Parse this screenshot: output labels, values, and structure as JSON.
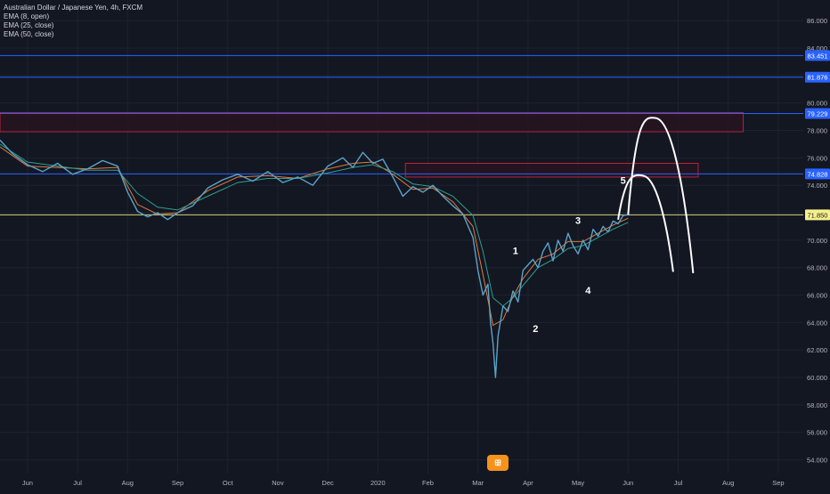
{
  "header": {
    "symbol_line": "Australian Dollar / Japanese Yen, 4h, FXCM",
    "indicators": [
      "EMA (8, open)",
      "EMA (25, close)",
      "EMA (50, close)"
    ]
  },
  "colors": {
    "background": "#131722",
    "grid": "#1e2230",
    "axis_text": "#b2b5be",
    "hline_blue": "#2962ff",
    "hline_current": "#d7d27a",
    "zone_border": "#b2243b",
    "zone_fill": "#2a1420",
    "price_series": "#5ba3c9",
    "ema_fast": "#e37b3a",
    "ema_slow": "#2f9e8f",
    "projection": "#ffffff",
    "wave_label": "#ffffff"
  },
  "chart_data": {
    "type": "line",
    "title": "Australian Dollar / Japanese Yen, 4h, FXCM",
    "xlabel": "",
    "ylabel": "",
    "x_ticks": [
      "Jun",
      "Jul",
      "Aug",
      "Sep",
      "Oct",
      "Nov",
      "Dec",
      "2020",
      "Feb",
      "Mar",
      "Apr",
      "May",
      "Jun",
      "Jul",
      "Aug",
      "Sep"
    ],
    "x_tick_months": [
      0,
      1,
      2,
      3,
      4,
      5,
      6,
      7,
      8,
      9,
      10,
      11,
      12,
      13,
      14,
      15
    ],
    "y_ticks": [
      "86.000",
      "84.000",
      "82.000",
      "80.000",
      "78.000",
      "76.000",
      "74.000",
      "72.000",
      "70.000",
      "68.000",
      "66.000",
      "64.000",
      "62.000",
      "60.000",
      "58.000",
      "56.000",
      "54.000"
    ],
    "ylim": [
      53,
      87.5
    ],
    "xlim_months": [
      -0.55,
      15.5
    ],
    "grid": true,
    "price_series": {
      "x_months": [
        -0.55,
        -0.3,
        0.0,
        0.3,
        0.6,
        0.9,
        1.2,
        1.5,
        1.8,
        2.0,
        2.2,
        2.4,
        2.6,
        2.8,
        3.0,
        3.3,
        3.6,
        3.9,
        4.2,
        4.5,
        4.8,
        5.1,
        5.4,
        5.7,
        6.0,
        6.3,
        6.5,
        6.7,
        6.9,
        7.1,
        7.3,
        7.5,
        7.7,
        7.9,
        8.1,
        8.3,
        8.5,
        8.7,
        8.9,
        9.0,
        9.1,
        9.2,
        9.25,
        9.3,
        9.35,
        9.4,
        9.5,
        9.6,
        9.7,
        9.8,
        9.9,
        10.0,
        10.1,
        10.2,
        10.3,
        10.4,
        10.5,
        10.6,
        10.7,
        10.8,
        10.9,
        11.0,
        11.1,
        11.2,
        11.3,
        11.4,
        11.5,
        11.6,
        11.7,
        11.8,
        11.9,
        12.0
      ],
      "values": [
        77.3,
        76.3,
        75.5,
        75.0,
        75.6,
        74.8,
        75.2,
        75.8,
        75.4,
        73.5,
        72.1,
        71.7,
        72.0,
        71.5,
        72.0,
        72.5,
        73.8,
        74.4,
        74.8,
        74.3,
        75.0,
        74.2,
        74.6,
        74.0,
        75.4,
        76.0,
        75.3,
        76.4,
        75.6,
        75.9,
        74.6,
        73.2,
        73.9,
        73.5,
        74.0,
        73.2,
        72.5,
        71.9,
        70.2,
        67.8,
        66.0,
        66.8,
        64.0,
        62.5,
        60.0,
        63.0,
        65.2,
        64.8,
        66.3,
        65.5,
        67.8,
        68.2,
        68.6,
        68.0,
        69.2,
        69.8,
        68.5,
        70.0,
        69.2,
        70.5,
        69.6,
        69.0,
        70.0,
        69.3,
        70.8,
        70.3,
        71.0,
        70.6,
        71.4,
        71.2,
        71.8,
        71.85
      ]
    },
    "ema_series": [
      {
        "x_months": [
          -0.55,
          0.0,
          0.6,
          1.2,
          1.8,
          2.2,
          2.6,
          3.0,
          3.6,
          4.2,
          4.8,
          5.4,
          6.0,
          6.5,
          6.9,
          7.3,
          7.7,
          8.1,
          8.5,
          8.9,
          9.1,
          9.3,
          9.5,
          9.7,
          9.9,
          10.2,
          10.5,
          10.8,
          11.1,
          11.4,
          11.7,
          12.0
        ],
        "values": [
          76.8,
          75.4,
          75.3,
          75.2,
          75.3,
          72.6,
          71.9,
          72.0,
          73.6,
          74.6,
          74.7,
          74.5,
          75.2,
          75.6,
          75.7,
          74.8,
          73.7,
          73.8,
          72.8,
          71.0,
          67.5,
          63.8,
          64.2,
          65.9,
          67.2,
          68.6,
          69.0,
          69.9,
          69.9,
          70.5,
          71.1,
          71.6
        ]
      },
      {
        "x_months": [
          -0.55,
          0.0,
          0.6,
          1.2,
          1.8,
          2.2,
          2.6,
          3.0,
          3.6,
          4.2,
          4.8,
          5.4,
          6.0,
          6.5,
          6.9,
          7.3,
          7.7,
          8.1,
          8.5,
          8.9,
          9.1,
          9.3,
          9.5,
          9.7,
          9.9,
          10.2,
          10.5,
          10.8,
          11.1,
          11.4,
          11.7,
          12.0
        ],
        "values": [
          77.0,
          75.7,
          75.4,
          75.1,
          75.1,
          73.4,
          72.4,
          72.2,
          73.2,
          74.2,
          74.5,
          74.5,
          74.9,
          75.3,
          75.5,
          75.0,
          74.1,
          73.9,
          73.2,
          71.8,
          69.2,
          65.8,
          65.2,
          65.8,
          66.7,
          68.0,
          68.6,
          69.4,
          69.6,
          70.2,
          70.8,
          71.3
        ]
      }
    ],
    "horizontal_levels": [
      {
        "value": 83.451,
        "label": "83.451",
        "style": "blue"
      },
      {
        "value": 81.876,
        "label": "81.876",
        "style": "blue"
      },
      {
        "value": 79.229,
        "label": "79.229",
        "style": "blue"
      },
      {
        "value": 74.828,
        "label": "74.828",
        "style": "blue"
      },
      {
        "value": 71.85,
        "label": "71.850",
        "style": "current"
      }
    ],
    "zones": [
      {
        "x_from": -0.55,
        "x_to": 14.3,
        "y_from": 77.9,
        "y_to": 79.3
      },
      {
        "x_from": 7.55,
        "x_to": 13.4,
        "y_from": 74.6,
        "y_to": 75.6
      }
    ],
    "projections": [
      {
        "start": [
          12.0,
          71.85
        ],
        "peak": [
          12.55,
          78.9
        ],
        "end": [
          13.3,
          67.6
        ]
      },
      {
        "start": [
          11.8,
          71.5
        ],
        "peak": [
          12.3,
          74.7
        ],
        "end": [
          12.9,
          67.7
        ]
      }
    ],
    "wave_labels": [
      {
        "text": "1",
        "x": 9.75,
        "y": 69.0
      },
      {
        "text": "2",
        "x": 10.15,
        "y": 63.3
      },
      {
        "text": "3",
        "x": 11.0,
        "y": 71.2
      },
      {
        "text": "4",
        "x": 11.2,
        "y": 66.1
      },
      {
        "text": "5",
        "x": 11.9,
        "y": 74.1
      }
    ],
    "logo_text": "ꕥ"
  }
}
